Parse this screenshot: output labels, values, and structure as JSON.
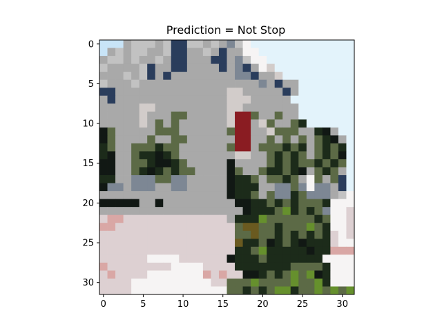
{
  "chart_data": {
    "type": "heatmap",
    "title": "Prediction = Not Stop",
    "xlabel": "",
    "ylabel": "",
    "xlim": [
      -0.5,
      31.5
    ],
    "ylim": [
      31.5,
      -0.5
    ],
    "x_ticks": [
      0,
      5,
      10,
      15,
      20,
      25,
      30
    ],
    "y_ticks": [
      0,
      5,
      10,
      15,
      20,
      25,
      30
    ],
    "grid": false,
    "image_size": [
      32,
      32
    ],
    "palette": {
      "S": "#c8e4f7",
      "s": "#e3f3fb",
      "B": "#c2c2c2",
      "b": "#a9a9a9",
      "N": "#2a3d5c",
      "w": "#d2ccca",
      "g": "#5c6a46",
      "d": "#1c2b1a",
      "k": "#111814",
      "r": "#8a1c22",
      "p": "#ddd0d2",
      "P": "#d9a7a5",
      "W": "#f6f4f4",
      "o": "#6a5a20",
      "L": "#66902d",
      "e": "#7d8794"
    },
    "pixels": [
      "SSSbBBBbBNNBBbBbeBWsssssssssssss",
      "SbBbBBbbBNNbbBbNbbWWssssssssssss",
      "bBBbBbbBbNNbbbNNbeBWWsssssssssss",
      "BbbbbBNbbNNbbbbNbeNbWwsssssssss",
      "bbbBbBNbNbbbbbbbbeeNbbwsssssssss",
      "BbbbBbbbbbbbbbbbbbbbebNbbsssssss",
      "NNbbbbbbbbbbbbbbwwbbbbbNbsssssss",
      "bNbbbbbbbbbbbbbbwwwbbbbbssssssss",
      "bbbbbwwbbbbbbbbbwwbbbbbbbsssssss",
      "bbbbbwbbbggbbbbbwrrgbbgbbsssssss",
      "bbbbbwbgbgbbbbbbwrrbwgbbgdssssss",
      "kgbbbbbgggbbbbbbgrrbbwgggbbdkbss",
      "kgbbbbgbbggbbbbbbrrbbgbgbgbgdkbs",
      "dgbbgggdggbbbbbbgrrbgggdgdbgdgds",
      "dkbbgddkdgbbbbbbbwwbbgdgdgbgdgks",
      "kkbbggdkkdgbbbbbkbbbbgdgdggdgdgs",
      "kkbbgdkdgdggbbbbkgbbgddgdkbgdgbs",
      "ddbbeeeggeebbbbbkddgbggdgbWgbgNs",
      "keebeeebbeebbbbbkdddbbeegeWeebNs",
      "bbbbbbbbbbbbbbbbkddgbgeedgeeebBW",
      "kkkkkbbkbbbbbbbbbkkddgdgdgggdWWW",
      "bbbbbbbbbbbbbbbbbbkdddgLdgdgeWWp",
      "pPPpppppppppppppbdddLggggggdgWWp",
      "PPpppppppppppppppgooggdgggLgdWWp",
      "pppppppppppppppppggoggdgdgdgdpWp",
      "pppppppppppppppppoddgkdgdkdddpWW",
      "pppppppppppppppppddgLdddddkddPPP",
      "ppppppWWWWppppppkdddgdddddddWWWW",
      "PppppppppWWWWppppdddddddggggdWWW",
      "pPppppWWWWWWWPpPppkkdgdgLgLkdWWW",
      "ppppWWWWWWWWWWppgggLggggLggLdWWW",
      "ppppWWWWWWWWWWWWggdgdgLLdggLgLgL"
    ]
  }
}
